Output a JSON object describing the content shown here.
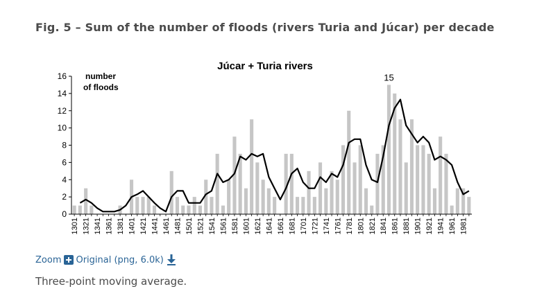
{
  "figure": {
    "title": "Fig. 5 – Sum of the number of floods (rivers Turia and Júcar) per decade",
    "zoom_label": "Zoom",
    "original_label": "Original (png, 6.0k)",
    "caption": "Three-point moving average."
  },
  "chart_data": {
    "type": "bar",
    "title": "Júcar + Turia  rivers",
    "ylabel": "number of floods",
    "ylim": [
      0,
      16
    ],
    "yticks": [
      0,
      2,
      4,
      6,
      8,
      10,
      12,
      14,
      16
    ],
    "peak_label": "15",
    "bar_color": "#c6c6c6",
    "line_color": "#000000",
    "categories": [
      "1301",
      "1311",
      "1321",
      "1331",
      "1341",
      "1351",
      "1361",
      "1371",
      "1381",
      "1391",
      "1401",
      "1411",
      "1421",
      "1431",
      "1441",
      "1451",
      "1461",
      "1471",
      "1481",
      "1491",
      "1501",
      "1511",
      "1521",
      "1531",
      "1541",
      "1551",
      "1561",
      "1571",
      "1581",
      "1591",
      "1601",
      "1611",
      "1621",
      "1631",
      "1641",
      "1651",
      "1661",
      "1671",
      "1681",
      "1691",
      "1701",
      "1711",
      "1721",
      "1731",
      "1741",
      "1751",
      "1761",
      "1771",
      "1781",
      "1791",
      "1801",
      "1811",
      "1821",
      "1831",
      "1841",
      "1851",
      "1861",
      "1871",
      "1881",
      "1891",
      "1901",
      "1911",
      "1921",
      "1931",
      "1941",
      "1951",
      "1961",
      "1971",
      "1981",
      "1991"
    ],
    "tick_labels": [
      "1301",
      "1321",
      "1341",
      "1361",
      "1381",
      "1401",
      "1421",
      "1441",
      "1461",
      "1481",
      "1501",
      "1521",
      "1541",
      "1561",
      "1581",
      "1601",
      "1621",
      "1641",
      "1661",
      "1681",
      "1701",
      "1721",
      "1741",
      "1761",
      "1781",
      "1801",
      "1821",
      "1841",
      "1861",
      "1881",
      "1901",
      "1921",
      "1941",
      "1961",
      "1981"
    ],
    "series": [
      {
        "type": "bar",
        "values": [
          1,
          1,
          3,
          1,
          0,
          0,
          0,
          0,
          1,
          0,
          4,
          2,
          2,
          2,
          1,
          0,
          0,
          5,
          2,
          1,
          1,
          2,
          1,
          4,
          2,
          7,
          1,
          4,
          9,
          7,
          3,
          11,
          6,
          4,
          3,
          2,
          0,
          7,
          7,
          2,
          2,
          5,
          2,
          6,
          3,
          5,
          4,
          8,
          12,
          6,
          8,
          3,
          1,
          7,
          8,
          15,
          14,
          11,
          6,
          11,
          8,
          8,
          7,
          3,
          9,
          7,
          1,
          3,
          3,
          2
        ]
      },
      {
        "type": "line",
        "values": [
          null,
          1.3,
          1.7,
          1.3,
          0.7,
          0.3,
          0.3,
          0.3,
          0.5,
          1,
          2,
          2.3,
          2.7,
          2,
          1.3,
          0.7,
          0.3,
          2,
          2.7,
          2.7,
          1.3,
          1.3,
          1.3,
          2.3,
          2.7,
          4.7,
          3.7,
          4,
          4.7,
          6.7,
          6.3,
          7,
          6.7,
          7,
          4.3,
          3,
          1.7,
          3,
          4.7,
          5.3,
          3.7,
          3,
          3,
          4.3,
          3.7,
          4.7,
          4.3,
          5.7,
          8.3,
          8.7,
          8.7,
          5.7,
          4,
          3.7,
          6.7,
          10.3,
          12.3,
          13.3,
          10.3,
          9.3,
          8.3,
          9,
          8.3,
          6.3,
          6.7,
          6.3,
          5.7,
          3.7,
          2.3,
          2.7
        ]
      }
    ]
  }
}
